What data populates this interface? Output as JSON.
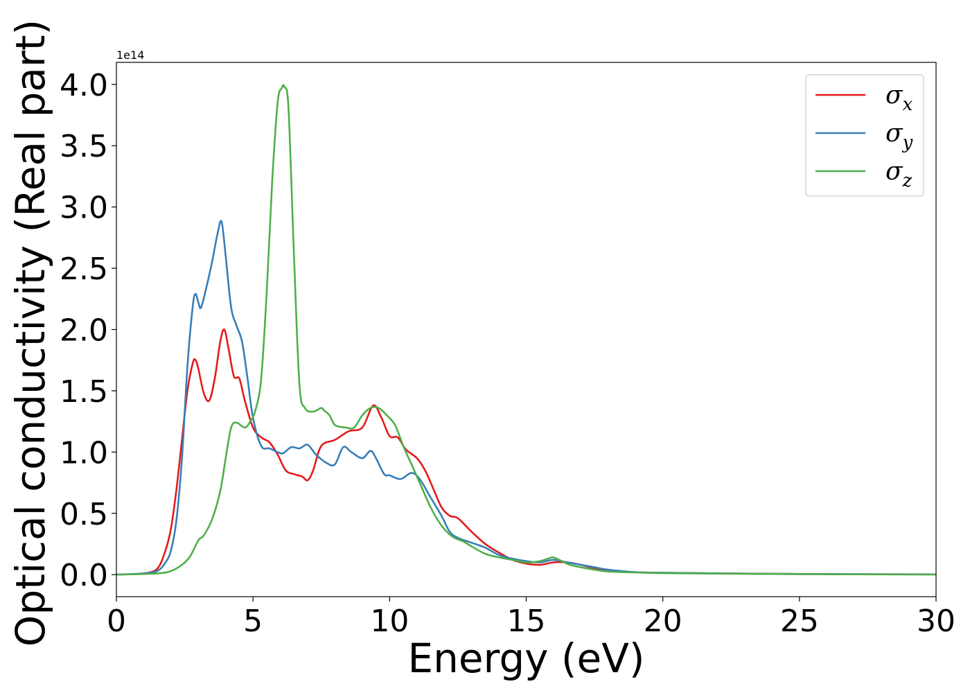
{
  "chart_data": {
    "type": "line",
    "title": "",
    "xlabel": "Energy (eV)",
    "ylabel": "Optical conductivity (Real part)",
    "y_offset_label": "1e14",
    "xlim": [
      0,
      30
    ],
    "ylim": [
      -0.18,
      4.18
    ],
    "xticks": [
      0,
      5,
      10,
      15,
      20,
      25,
      30
    ],
    "xtick_labels": [
      "0",
      "5",
      "10",
      "15",
      "20",
      "25",
      "30"
    ],
    "yticks": [
      0.0,
      0.5,
      1.0,
      1.5,
      2.0,
      2.5,
      3.0,
      3.5,
      4.0
    ],
    "ytick_labels": [
      "0.0",
      "0.5",
      "1.0",
      "1.5",
      "2.0",
      "2.5",
      "3.0",
      "3.5",
      "4.0"
    ],
    "grid": false,
    "legend_position": "top-right",
    "series": [
      {
        "name": "σx",
        "symbol": "σ",
        "subscript": "x",
        "color": "#e41a1c",
        "x": [
          0,
          1.0,
          1.5,
          1.8,
          2.0,
          2.2,
          2.4,
          2.6,
          2.8,
          2.9,
          3.0,
          3.2,
          3.4,
          3.6,
          3.8,
          3.95,
          4.1,
          4.3,
          4.5,
          4.7,
          5.0,
          5.3,
          5.6,
          5.9,
          6.2,
          6.5,
          6.8,
          7.0,
          7.2,
          7.5,
          8.0,
          8.5,
          9.0,
          9.4,
          9.7,
          10.0,
          10.3,
          10.6,
          11.0,
          11.3,
          11.6,
          11.9,
          12.2,
          12.5,
          13.0,
          13.5,
          14.0,
          14.5,
          15.0,
          15.5,
          16.0,
          16.5,
          17.0,
          17.5,
          18.0,
          19.0,
          20.0,
          22.0,
          25.0,
          28.0,
          30.0
        ],
        "y": [
          0,
          0.01,
          0.05,
          0.2,
          0.38,
          0.7,
          1.1,
          1.5,
          1.73,
          1.75,
          1.68,
          1.48,
          1.42,
          1.6,
          1.9,
          2.0,
          1.85,
          1.62,
          1.6,
          1.42,
          1.2,
          1.12,
          1.08,
          0.98,
          0.85,
          0.82,
          0.8,
          0.77,
          0.85,
          1.05,
          1.1,
          1.17,
          1.2,
          1.38,
          1.28,
          1.13,
          1.12,
          1.02,
          0.95,
          0.85,
          0.7,
          0.55,
          0.48,
          0.46,
          0.35,
          0.25,
          0.18,
          0.12,
          0.09,
          0.08,
          0.1,
          0.1,
          0.08,
          0.05,
          0.03,
          0.02,
          0.015,
          0.01,
          0.005,
          0.003,
          0.002
        ]
      },
      {
        "name": "σy",
        "symbol": "σ",
        "subscript": "y",
        "color": "#377eb8",
        "x": [
          0,
          1.0,
          1.5,
          1.8,
          2.0,
          2.2,
          2.4,
          2.6,
          2.8,
          2.9,
          3.0,
          3.1,
          3.3,
          3.5,
          3.7,
          3.85,
          4.0,
          4.2,
          4.4,
          4.6,
          4.8,
          5.0,
          5.3,
          5.6,
          5.9,
          6.1,
          6.4,
          6.7,
          7.0,
          7.3,
          7.7,
          8.0,
          8.3,
          8.6,
          9.0,
          9.3,
          9.5,
          9.8,
          10.0,
          10.4,
          10.8,
          11.1,
          11.5,
          11.9,
          12.2,
          12.5,
          13.0,
          13.5,
          14.0,
          14.5,
          15.0,
          15.5,
          16.0,
          16.5,
          17.0,
          17.5,
          18.0,
          19.0,
          20.0,
          22.0,
          25.0,
          28.0,
          30.0
        ],
        "y": [
          0,
          0.01,
          0.03,
          0.1,
          0.2,
          0.45,
          0.95,
          1.7,
          2.2,
          2.29,
          2.22,
          2.18,
          2.35,
          2.55,
          2.78,
          2.88,
          2.6,
          2.18,
          2.03,
          1.9,
          1.6,
          1.28,
          1.05,
          1.03,
          1.0,
          0.99,
          1.04,
          1.03,
          1.06,
          0.98,
          0.91,
          0.9,
          1.04,
          1.0,
          0.95,
          1.01,
          0.95,
          0.82,
          0.81,
          0.78,
          0.83,
          0.78,
          0.63,
          0.48,
          0.35,
          0.3,
          0.26,
          0.22,
          0.16,
          0.13,
          0.11,
          0.1,
          0.12,
          0.1,
          0.08,
          0.06,
          0.04,
          0.02,
          0.015,
          0.01,
          0.005,
          0.003,
          0.002
        ]
      },
      {
        "name": "σz",
        "symbol": "σ",
        "subscript": "z",
        "color": "#4daf4a",
        "x": [
          0,
          1.5,
          2.0,
          2.4,
          2.7,
          3.0,
          3.2,
          3.5,
          3.8,
          4.0,
          4.2,
          4.4,
          4.7,
          4.9,
          5.1,
          5.3,
          5.5,
          5.7,
          5.9,
          6.05,
          6.15,
          6.3,
          6.5,
          6.7,
          6.9,
          7.2,
          7.5,
          7.6,
          7.8,
          8.0,
          8.4,
          8.7,
          9.0,
          9.3,
          9.6,
          9.9,
          10.2,
          10.5,
          10.8,
          11.1,
          11.5,
          11.9,
          12.3,
          12.7,
          13.0,
          13.5,
          14.0,
          14.5,
          15.0,
          15.5,
          15.8,
          16.0,
          16.3,
          16.6,
          17.0,
          17.5,
          18.0,
          19.0,
          20.0,
          22.0,
          25.0,
          28.0,
          30.0
        ],
        "y": [
          0,
          0.01,
          0.03,
          0.08,
          0.15,
          0.28,
          0.32,
          0.45,
          0.68,
          0.95,
          1.2,
          1.24,
          1.2,
          1.25,
          1.35,
          1.6,
          2.3,
          3.2,
          3.85,
          3.97,
          3.98,
          3.8,
          2.6,
          1.55,
          1.36,
          1.33,
          1.36,
          1.34,
          1.3,
          1.22,
          1.2,
          1.2,
          1.3,
          1.36,
          1.36,
          1.3,
          1.22,
          1.05,
          0.9,
          0.75,
          0.55,
          0.4,
          0.31,
          0.27,
          0.23,
          0.17,
          0.14,
          0.12,
          0.1,
          0.11,
          0.13,
          0.14,
          0.11,
          0.08,
          0.06,
          0.04,
          0.025,
          0.018,
          0.012,
          0.008,
          0.004,
          0.002,
          0.001
        ]
      }
    ]
  }
}
